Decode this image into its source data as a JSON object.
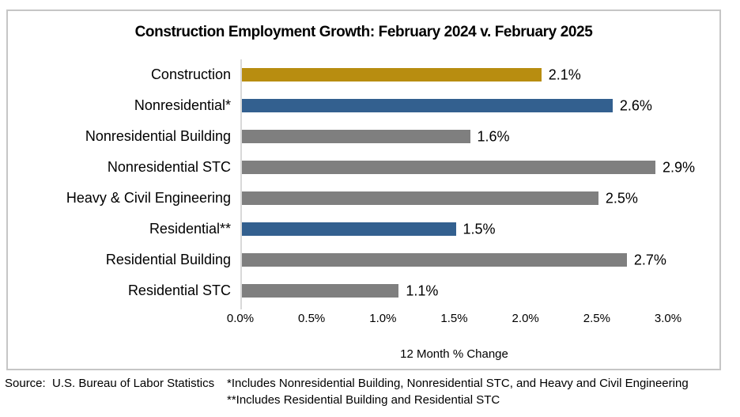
{
  "chart_data": {
    "type": "bar",
    "orientation": "horizontal",
    "title": "Construction Employment Growth: February 2024 v. February 2025",
    "xlabel": "12 Month % Change",
    "xlim": [
      0,
      3.0
    ],
    "x_ticks": [
      "0.0%",
      "0.5%",
      "1.0%",
      "1.5%",
      "2.0%",
      "2.5%",
      "3.0%"
    ],
    "grid": false,
    "legend": false,
    "categories": [
      "Construction",
      "Nonresidential*",
      "Nonresidential Building",
      "Nonresidential STC",
      "Heavy & Civil Engineering",
      "Residential**",
      "Residential Building",
      "Residential STC"
    ],
    "values": [
      2.1,
      2.6,
      1.6,
      2.9,
      2.5,
      1.5,
      2.7,
      1.1
    ],
    "bars": [
      {
        "label": "Construction",
        "value": 2.1,
        "value_label": "2.1%",
        "color": "#B88D10"
      },
      {
        "label": "Nonresidential*",
        "value": 2.6,
        "value_label": "2.6%",
        "color": "#33608F"
      },
      {
        "label": "Nonresidential Building",
        "value": 1.6,
        "value_label": "1.6%",
        "color": "#7F7F7F"
      },
      {
        "label": "Nonresidential STC",
        "value": 2.9,
        "value_label": "2.9%",
        "color": "#7F7F7F"
      },
      {
        "label": "Heavy & Civil Engineering",
        "value": 2.5,
        "value_label": "2.5%",
        "color": "#7F7F7F"
      },
      {
        "label": "Residential**",
        "value": 1.5,
        "value_label": "1.5%",
        "color": "#33608F"
      },
      {
        "label": "Residential Building",
        "value": 2.7,
        "value_label": "2.7%",
        "color": "#7F7F7F"
      },
      {
        "label": "Residential STC",
        "value": 1.1,
        "value_label": "1.1%",
        "color": "#7F7F7F"
      }
    ],
    "colors": {
      "total_construction": "#B88D10",
      "aggregate_sector": "#33608F",
      "subsector": "#7F7F7F",
      "axis_line": "#D9D9D9",
      "box_border": "#C6C6C6"
    }
  },
  "footer": {
    "source": "Source:  U.S. Bureau of Labor Statistics",
    "note1": "*Includes Nonresidential Building, Nonresidential STC, and Heavy and Civil Engineering",
    "note2": "**Includes Residential Building and Residential STC"
  }
}
